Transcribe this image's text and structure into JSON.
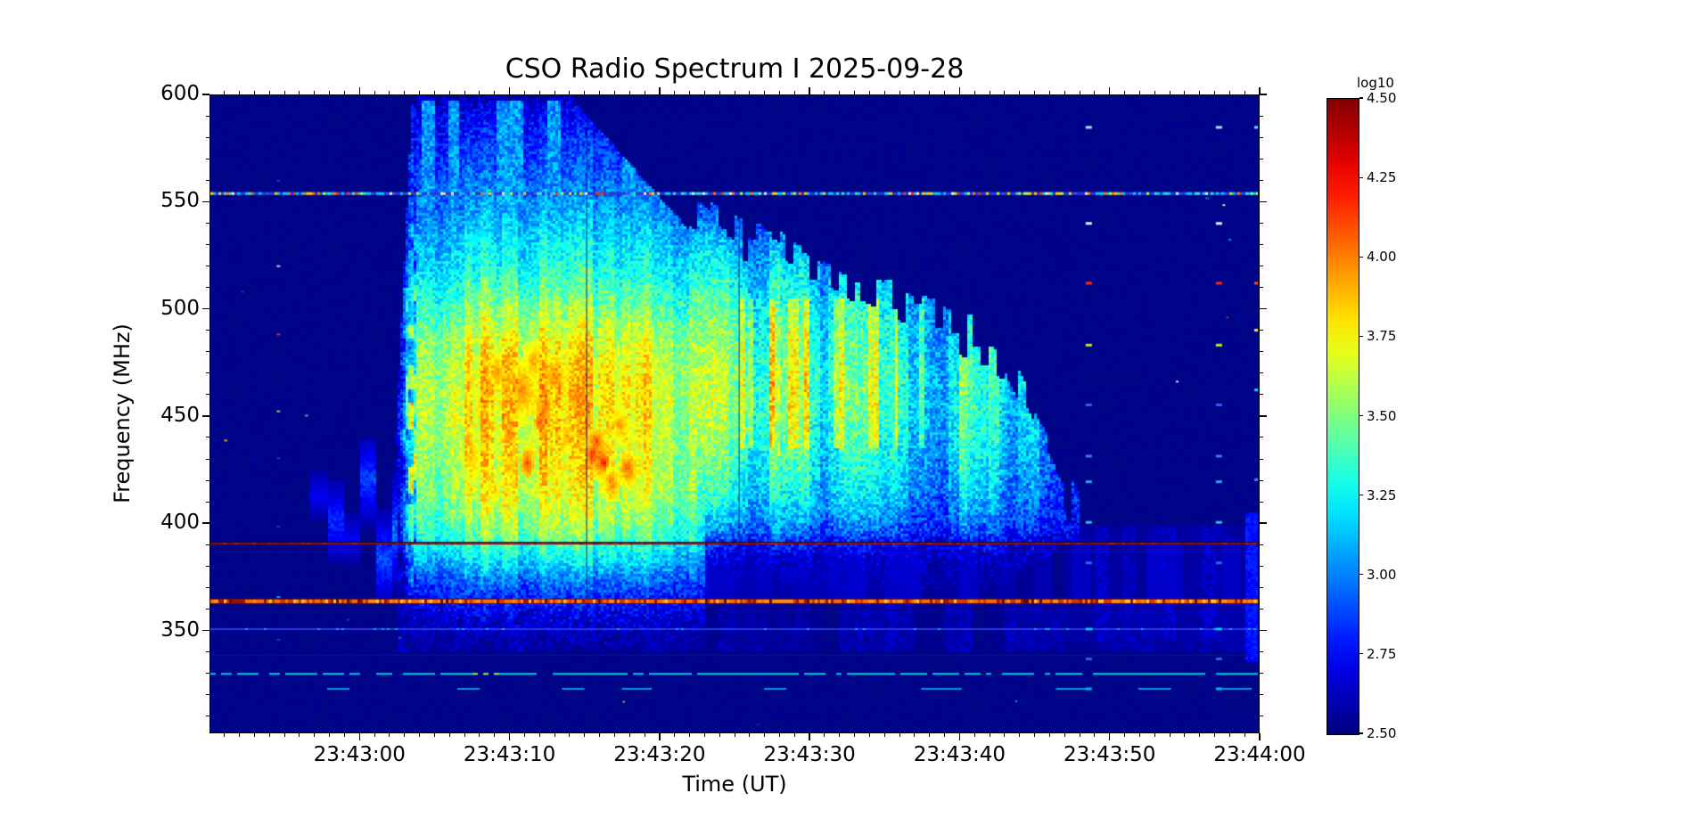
{
  "chart": {
    "title": "CSO Radio Spectrum I 2025-09-28",
    "x_axis": {
      "label": "Time (UT)",
      "tick_labels": [
        "23:43:00",
        "23:43:10",
        "23:43:20",
        "23:43:30",
        "23:43:40",
        "23:43:50",
        "23:44:00"
      ],
      "tick_seconds": [
        10,
        20,
        30,
        40,
        50,
        60,
        70
      ],
      "start_time": "23:42:50",
      "span_seconds": 70,
      "minor_step_seconds": 1
    },
    "y_axis": {
      "label": "Frequency (MHz)",
      "tick_labels": [
        "600",
        "550",
        "500",
        "450",
        "400",
        "350"
      ],
      "tick_values": [
        600,
        550,
        500,
        450,
        400,
        350
      ],
      "range_mhz": [
        302,
        600
      ],
      "minor_step_mhz": 10
    },
    "colorbar": {
      "label": "log10",
      "tick_labels": [
        "4.50",
        "4.25",
        "4.00",
        "3.75",
        "3.50",
        "3.25",
        "3.00",
        "2.75",
        "2.50"
      ],
      "tick_values": [
        4.5,
        4.25,
        4.0,
        3.75,
        3.5,
        3.25,
        3.0,
        2.75,
        2.5
      ],
      "vmin": 2.5,
      "vmax": 4.5,
      "colormap": "jet"
    }
  },
  "chart_data": {
    "type": "heatmap",
    "subtype": "solar-radio-spectrogram",
    "title": "CSO Radio Spectrum I 2025-09-28",
    "xlabel": "Time (UT)",
    "ylabel": "Frequency (MHz)",
    "x_range": [
      "23:42:50",
      "23:44:00"
    ],
    "y_range_mhz": [
      302,
      600
    ],
    "intensity_scale": "log10",
    "intensity_range": [
      2.5,
      4.5
    ],
    "background_level_log10": 2.52,
    "features": {
      "precursor": {
        "t_start_s": 4.5,
        "t_end_s": 12.6,
        "f_low_mhz": 362,
        "f_high_mhz": 438,
        "peak_log10": 3.0,
        "description": "faint patchy blue blobs before burst onset"
      },
      "main_burst": {
        "t_start_s": 12.3,
        "t_end_s": 33,
        "f_low_mhz": 345,
        "f_high_mhz": 600,
        "core_t_s": [
          15,
          31.5
        ],
        "core_f_mhz": [
          400,
          490
        ],
        "top_decline_start_s": 24,
        "top_freq_at_end_mhz": 545,
        "peak_log10": 4.1,
        "profile": [
          [
            600,
            2.58
          ],
          [
            592,
            2.72
          ],
          [
            580,
            2.82
          ],
          [
            565,
            2.92
          ],
          [
            552,
            3.02
          ],
          [
            540,
            3.12
          ],
          [
            528,
            3.22
          ],
          [
            515,
            3.32
          ],
          [
            502,
            3.48
          ],
          [
            490,
            3.62
          ],
          [
            478,
            3.72
          ],
          [
            462,
            3.78
          ],
          [
            448,
            3.76
          ],
          [
            432,
            3.72
          ],
          [
            418,
            3.68
          ],
          [
            408,
            3.62
          ],
          [
            398,
            3.52
          ],
          [
            390,
            3.38
          ],
          [
            382,
            3.2
          ],
          [
            374,
            3.0
          ],
          [
            366,
            2.85
          ],
          [
            358,
            2.72
          ],
          [
            350,
            2.62
          ],
          [
            345,
            2.56
          ],
          [
            340,
            2.5
          ]
        ]
      },
      "decay_burst": {
        "t_start_s": 31,
        "t_end_s": 58,
        "f_low_mhz": 385,
        "f_high_mhz": 545,
        "top_slope_mhz_per_s": -3,
        "peak_log10": 3.65,
        "profile": [
          [
            545,
            2.85
          ],
          [
            535,
            2.98
          ],
          [
            522,
            3.1
          ],
          [
            508,
            3.22
          ],
          [
            495,
            3.32
          ],
          [
            480,
            3.38
          ],
          [
            465,
            3.42
          ],
          [
            450,
            3.4
          ],
          [
            438,
            3.34
          ],
          [
            425,
            3.28
          ],
          [
            412,
            3.18
          ],
          [
            402,
            3.05
          ],
          [
            394,
            2.9
          ],
          [
            386,
            2.75
          ],
          [
            378,
            2.65
          ],
          [
            370,
            2.58
          ]
        ]
      },
      "post_tail": {
        "t_start_s": 57,
        "t_end_s": 70,
        "f_low_mhz": 345,
        "f_high_mhz": 398,
        "peak_log10": 2.75
      },
      "rfi_lines": [
        {
          "freq_mhz": 554,
          "style": "speckled multicolor line"
        },
        {
          "freq_mhz": 390,
          "style": "dark red line"
        },
        {
          "freq_mhz": 363,
          "style": "bright orange-red speckled line"
        },
        {
          "freq_mhz": 350,
          "style": "thin blue line"
        },
        {
          "freq_mhz": 338,
          "style": "very faint navy line"
        },
        {
          "freq_mhz": 329,
          "style": "cyan dashed line, bright green segment near 23:43:08"
        },
        {
          "freq_mhz": 322,
          "style": "sparse cyan dashes"
        }
      ],
      "calibration_columns": [
        {
          "t_s": 58.7,
          "faint": false
        },
        {
          "t_s": 67.4,
          "faint": false
        },
        {
          "t_s": 4.55,
          "faint": true
        }
      ]
    }
  }
}
